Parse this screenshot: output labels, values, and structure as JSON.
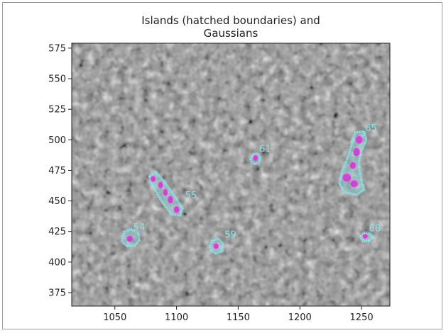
{
  "chart_data": {
    "type": "scatter",
    "title_lines": [
      "Islands (hatched boundaries) and",
      "Gaussians"
    ],
    "xlabel": "",
    "ylabel": "",
    "xlim": [
      1015,
      1273
    ],
    "ylim": [
      364,
      579
    ],
    "xticks": [
      1050,
      1100,
      1150,
      1200,
      1250
    ],
    "yticks": [
      375,
      400,
      425,
      450,
      475,
      500,
      525,
      550,
      575
    ],
    "background": "grayscale noise image",
    "grid": false,
    "colors": {
      "island_boundary": "#8be8ee",
      "gaussian_fill": "#cc3bd0",
      "label_color": "#8fe3e8",
      "axis_color": "#222222"
    },
    "islands": [
      {
        "id": "54",
        "label_at": [
          1065,
          426
        ],
        "boundary": [
          [
            1056,
            419
          ],
          [
            1058,
            425
          ],
          [
            1063,
            427
          ],
          [
            1069,
            424
          ],
          [
            1070,
            418
          ],
          [
            1066,
            413
          ],
          [
            1060,
            413
          ],
          [
            1056,
            416
          ]
        ],
        "gaussians": [
          {
            "x": 1062,
            "y": 419,
            "rx": 2.6,
            "ry": 2.6
          }
        ]
      },
      {
        "id": "55",
        "label_at": [
          1107,
          452
        ],
        "boundary": [
          [
            1078,
            470
          ],
          [
            1083,
            474
          ],
          [
            1090,
            466
          ],
          [
            1098,
            455
          ],
          [
            1105,
            444
          ],
          [
            1103,
            438
          ],
          [
            1096,
            439
          ],
          [
            1089,
            448
          ],
          [
            1083,
            458
          ],
          [
            1079,
            465
          ]
        ],
        "gaussians": [
          {
            "x": 1081,
            "y": 468,
            "rx": 2.1,
            "ry": 2.6
          },
          {
            "x": 1087,
            "y": 463,
            "rx": 2.1,
            "ry": 2.8
          },
          {
            "x": 1091,
            "y": 457,
            "rx": 2.0,
            "ry": 3.0
          },
          {
            "x": 1095,
            "y": 451,
            "rx": 2.3,
            "ry": 3.3
          },
          {
            "x": 1100,
            "y": 443,
            "rx": 2.4,
            "ry": 2.9
          }
        ]
      },
      {
        "id": "59",
        "label_at": [
          1139,
          420
        ],
        "boundary": [
          [
            1127,
            413
          ],
          [
            1129,
            418
          ],
          [
            1134,
            419
          ],
          [
            1138,
            415
          ],
          [
            1137,
            409
          ],
          [
            1132,
            407
          ],
          [
            1128,
            409
          ]
        ],
        "gaussians": [
          {
            "x": 1132,
            "y": 413,
            "rx": 2.3,
            "ry": 2.5
          }
        ]
      },
      {
        "id": "61",
        "label_at": [
          1167,
          490
        ],
        "boundary": [
          [
            1160,
            484
          ],
          [
            1162,
            488
          ],
          [
            1166,
            489
          ],
          [
            1168,
            486
          ],
          [
            1167,
            481
          ],
          [
            1163,
            480
          ],
          [
            1161,
            481
          ]
        ],
        "gaussians": [
          {
            "x": 1164,
            "y": 485,
            "rx": 2.0,
            "ry": 2.6
          }
        ]
      },
      {
        "id": "65",
        "label_at": [
          1253,
          507
        ],
        "boundary": [
          [
            1245,
            506
          ],
          [
            1252,
            507
          ],
          [
            1254,
            500
          ],
          [
            1250,
            491
          ],
          [
            1248,
            482
          ],
          [
            1249,
            472
          ],
          [
            1252,
            459
          ],
          [
            1246,
            455
          ],
          [
            1236,
            457
          ],
          [
            1232,
            464
          ],
          [
            1234,
            475
          ],
          [
            1238,
            483
          ],
          [
            1241,
            493
          ],
          [
            1243,
            501
          ]
        ],
        "gaussians": [
          {
            "x": 1248,
            "y": 500,
            "rx": 3.0,
            "ry": 3.3
          },
          {
            "x": 1246,
            "y": 490,
            "rx": 2.8,
            "ry": 3.5
          },
          {
            "x": 1243,
            "y": 479,
            "rx": 2.6,
            "ry": 3.0
          },
          {
            "x": 1238,
            "y": 469,
            "rx": 3.6,
            "ry": 3.5
          },
          {
            "x": 1244,
            "y": 464,
            "rx": 3.2,
            "ry": 3.0
          }
        ]
      },
      {
        "id": "68",
        "label_at": [
          1256,
          425
        ],
        "boundary": [
          [
            1249,
            421
          ],
          [
            1252,
            424
          ],
          [
            1257,
            423
          ],
          [
            1259,
            420
          ],
          [
            1256,
            417
          ],
          [
            1251,
            417
          ]
        ],
        "gaussians": [
          {
            "x": 1253,
            "y": 421,
            "rx": 2.2,
            "ry": 2.0
          }
        ]
      }
    ]
  }
}
